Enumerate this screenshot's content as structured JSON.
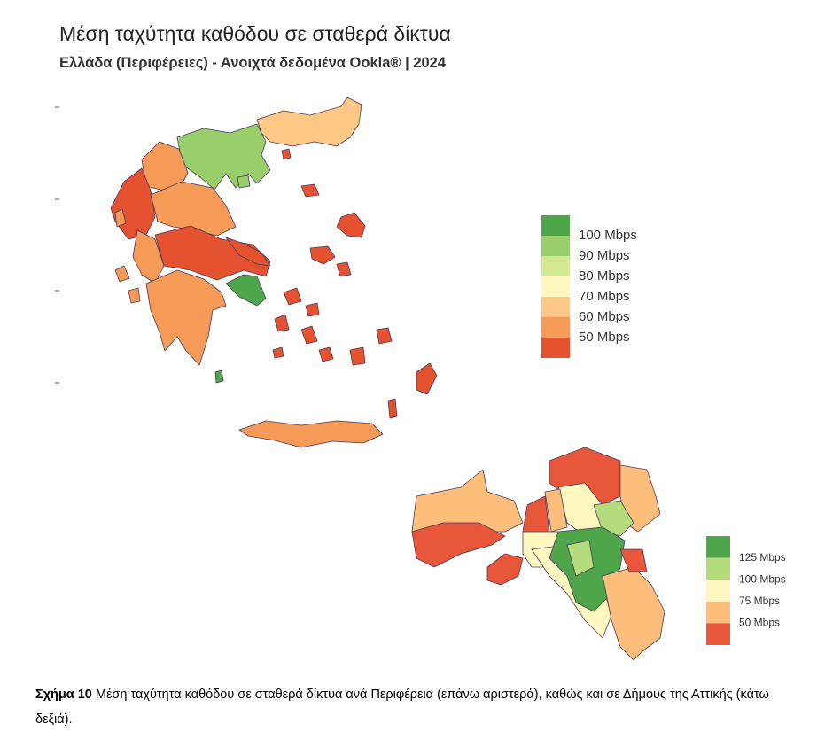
{
  "title": "Μέση ταχύτητα καθόδου σε σταθερά δίκτυα",
  "subtitle": "Ελλάδα (Περιφέρειες) - Ανοιχτά δεδομένα Ookla® | 2024",
  "legend_regions": {
    "colors": [
      "#4fa64a",
      "#98cf6a",
      "#d3ea93",
      "#fff7c0",
      "#fdc785",
      "#f59a57",
      "#e4522f"
    ],
    "labels": [
      "100 Mbps",
      "90 Mbps",
      "80 Mbps",
      "70 Mbps",
      "60 Mbps",
      "50 Mbps"
    ]
  },
  "legend_attica": {
    "colors": [
      "#4fa64a",
      "#b5dc7c",
      "#fff7c0",
      "#fdbd7b",
      "#e8573a"
    ],
    "labels": [
      "125 Mbps",
      "100 Mbps",
      "75 Mbps",
      "50 Mbps"
    ]
  },
  "caption": {
    "label": "Σχήμα 10",
    "text": "Μέση ταχύτητα καθόδου σε σταθερά δίκτυα ανά Περιφέρεια (επάνω αριστερά), καθώς και σε Δήμους της Αττικής (κάτω δεξιά)."
  }
}
